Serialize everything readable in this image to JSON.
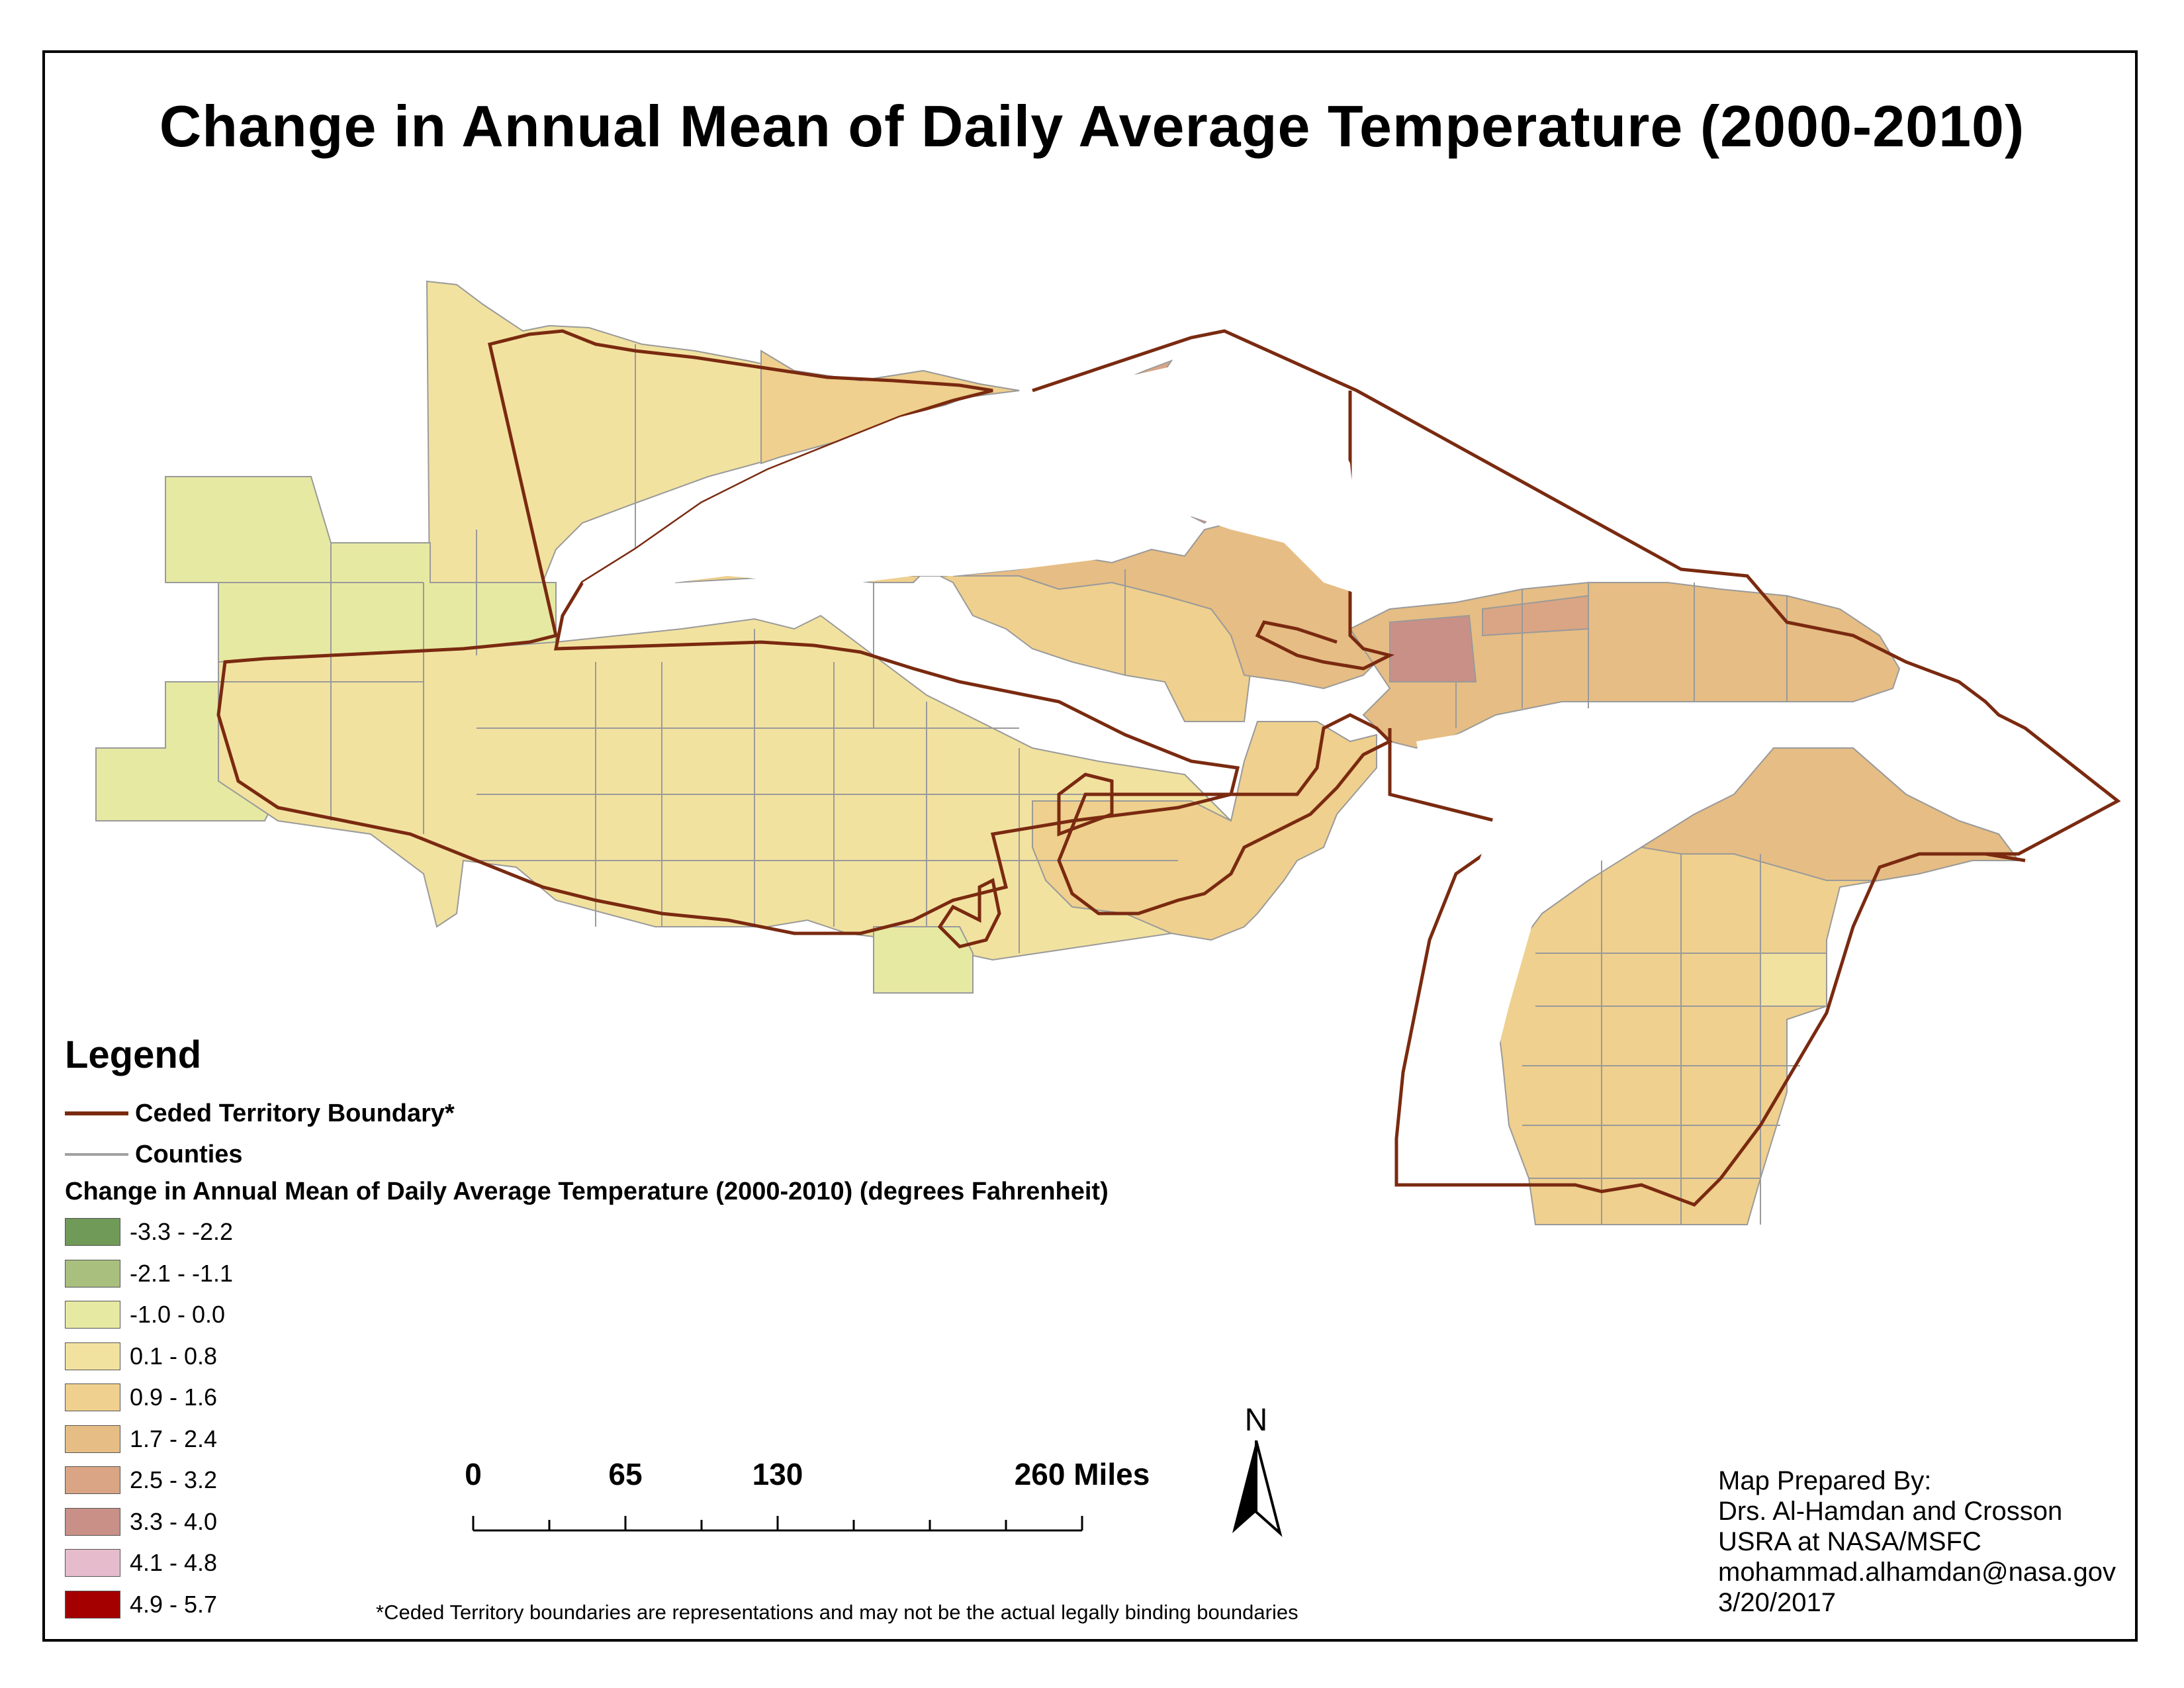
{
  "title": "Change in Annual Mean of Daily Average Temperature (2000-2010)",
  "legend": {
    "heading": "Legend",
    "boundary_label": "Ceded Territory Boundary*",
    "boundary_color": "#7a2a10",
    "counties_label": "Counties",
    "counties_color": "#a0a0a0",
    "ramp_title": "Change in Annual Mean of Daily Average Temperature (2000-2010) (degrees Fahrenheit)",
    "classes": [
      {
        "label": "-3.3 - -2.2",
        "color": "#6f9a58"
      },
      {
        "label": "-2.1 - -1.1",
        "color": "#a9bf7e"
      },
      {
        "label": "-1.0 - 0.0",
        "color": "#e6e9a2"
      },
      {
        "label": "0.1 - 0.8",
        "color": "#f2e2a0"
      },
      {
        "label": "0.9 - 1.6",
        "color": "#efd08e"
      },
      {
        "label": "1.7 - 2.4",
        "color": "#e6bd84"
      },
      {
        "label": "2.5 - 3.2",
        "color": "#d9a585"
      },
      {
        "label": "3.3 - 4.0",
        "color": "#c99087"
      },
      {
        "label": "4.1 - 4.8",
        "color": "#e6bccd"
      },
      {
        "label": "4.9 - 5.7",
        "color": "#a50000"
      }
    ]
  },
  "scalebar": {
    "labels": [
      "0",
      "65",
      "130",
      "260 Miles"
    ]
  },
  "north_arrow": {
    "letter": "N",
    "icon": "north-arrow-icon"
  },
  "credits": [
    "Map Prepared By:",
    "Drs. Al-Hamdan and Crosson",
    "USRA at NASA/MSFC",
    "mohammad.alhamdan@nasa.gov",
    "3/20/2017"
  ],
  "footnote": "*Ceded Territory boundaries are representations and may not be the actual legally binding boundaries"
}
